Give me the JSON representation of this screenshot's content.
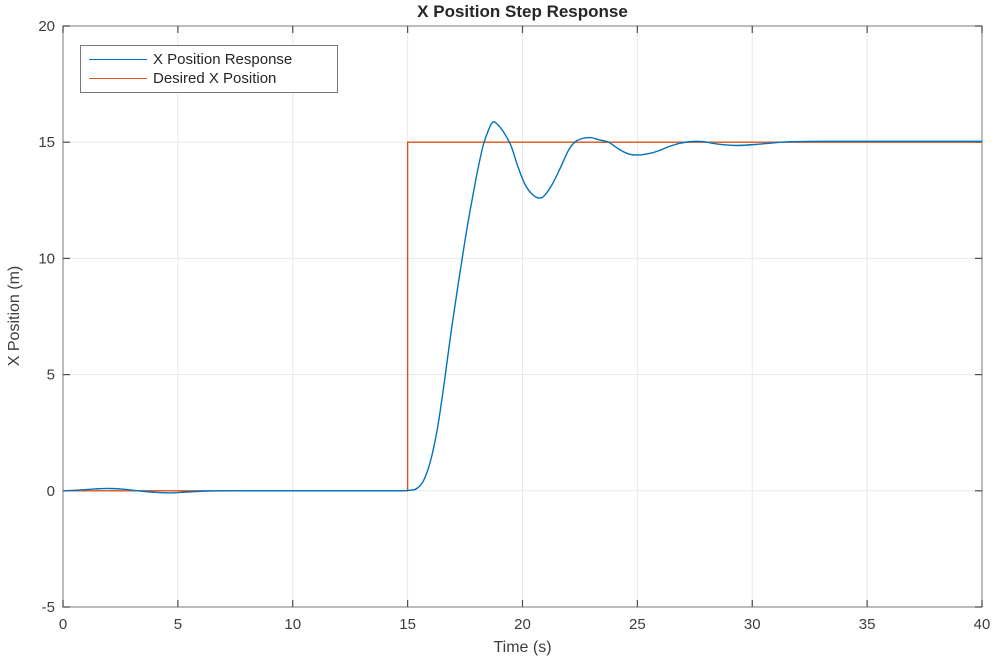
{
  "figure": {
    "background": "#ffffff",
    "box_color": "#8f8f8f",
    "grid_color": "#e8e8e8",
    "tick_color": "#4d4d4d",
    "tick_label_color": "#3d3d3d",
    "title_color": "#262626",
    "axis_label_color": "#3d3d3d",
    "legend_border_color": "#777777"
  },
  "chart_data": {
    "type": "line",
    "title": "X Position Step Response",
    "xlabel": "Time (s)",
    "ylabel": "X Position (m)",
    "xlim": [
      0,
      40
    ],
    "ylim": [
      -5,
      20
    ],
    "x_ticks": [
      0,
      5,
      10,
      15,
      20,
      25,
      30,
      35,
      40
    ],
    "y_ticks": [
      -5,
      0,
      5,
      10,
      15,
      20
    ],
    "grid": true,
    "legend_position": "top-left",
    "series": [
      {
        "name": "Desired X Position",
        "color": "#D95319",
        "smooth": false,
        "points": [
          [
            0,
            0
          ],
          [
            15,
            0
          ],
          [
            15,
            15
          ],
          [
            40,
            15
          ]
        ]
      },
      {
        "name": "X Position Response",
        "color": "#0072BD",
        "smooth": true,
        "points": [
          [
            0,
            0
          ],
          [
            0.7,
            0.03
          ],
          [
            1.4,
            0.08
          ],
          [
            2,
            0.1
          ],
          [
            2.6,
            0.07
          ],
          [
            3.2,
            0.01
          ],
          [
            3.9,
            -0.06
          ],
          [
            4.6,
            -0.09
          ],
          [
            5.4,
            -0.05
          ],
          [
            6.3,
            -0.01
          ],
          [
            7.5,
            0
          ],
          [
            9,
            0
          ],
          [
            11,
            0
          ],
          [
            13,
            0
          ],
          [
            14.6,
            0
          ],
          [
            15.1,
            0.02
          ],
          [
            15.4,
            0.1
          ],
          [
            15.7,
            0.45
          ],
          [
            16,
            1.3
          ],
          [
            16.3,
            2.7
          ],
          [
            16.6,
            4.7
          ],
          [
            16.9,
            6.9
          ],
          [
            17.2,
            8.9
          ],
          [
            17.5,
            10.8
          ],
          [
            17.8,
            12.5
          ],
          [
            18.05,
            13.8
          ],
          [
            18.3,
            14.9
          ],
          [
            18.55,
            15.6
          ],
          [
            18.72,
            15.87
          ],
          [
            18.9,
            15.78
          ],
          [
            19.2,
            15.4
          ],
          [
            19.5,
            14.85
          ],
          [
            19.8,
            13.95
          ],
          [
            20.1,
            13.2
          ],
          [
            20.4,
            12.78
          ],
          [
            20.7,
            12.6
          ],
          [
            20.95,
            12.7
          ],
          [
            21.3,
            13.2
          ],
          [
            21.65,
            13.9
          ],
          [
            22,
            14.65
          ],
          [
            22.3,
            15.02
          ],
          [
            22.6,
            15.16
          ],
          [
            22.95,
            15.2
          ],
          [
            23.35,
            15.1
          ],
          [
            23.75,
            15.0
          ],
          [
            24.2,
            14.7
          ],
          [
            24.6,
            14.5
          ],
          [
            25,
            14.45
          ],
          [
            25.45,
            14.5
          ],
          [
            25.9,
            14.62
          ],
          [
            26.4,
            14.82
          ],
          [
            26.9,
            14.96
          ],
          [
            27.4,
            15.03
          ],
          [
            27.9,
            15.02
          ],
          [
            28.5,
            14.92
          ],
          [
            29.3,
            14.86
          ],
          [
            30.1,
            14.9
          ],
          [
            30.9,
            14.97
          ],
          [
            31.7,
            15.02
          ],
          [
            33,
            15.04
          ],
          [
            35.5,
            15.04
          ],
          [
            38,
            15.04
          ],
          [
            40,
            15.04
          ]
        ]
      }
    ],
    "legend_entries": [
      {
        "label": "X Position Response",
        "color": "#0072BD"
      },
      {
        "label": "Desired X Position",
        "color": "#D95319"
      }
    ]
  }
}
